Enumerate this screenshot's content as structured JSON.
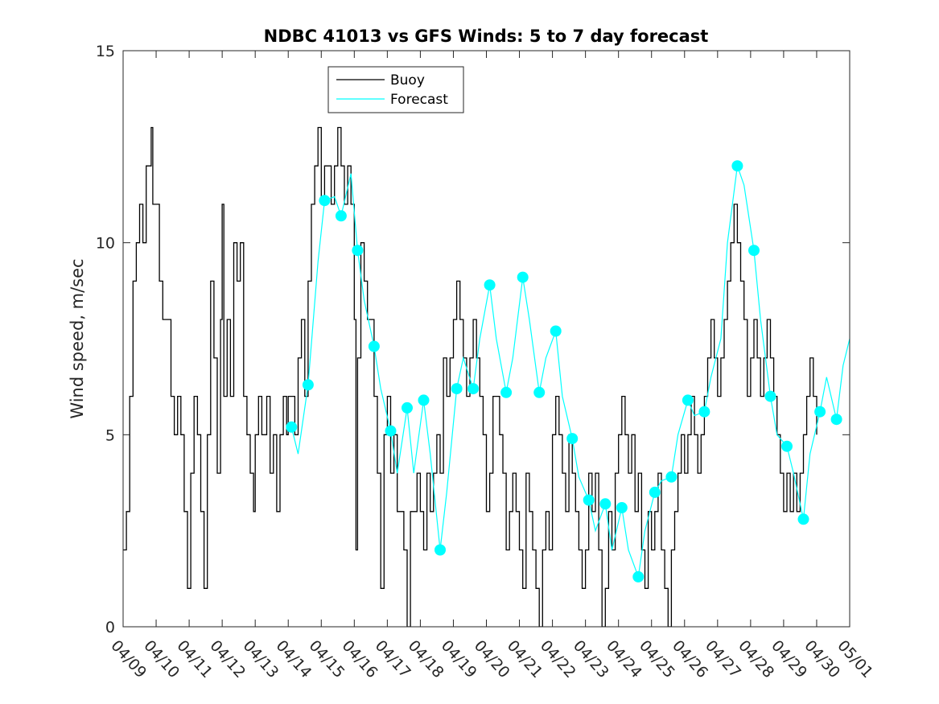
{
  "chart_data": {
    "type": "line",
    "title": "NDBC 41013 vs GFS Winds: 5 to 7 day forecast",
    "xlabel": "",
    "ylabel": "Wind speed, m/sec",
    "ylim": [
      0,
      15
    ],
    "yticks": [
      0,
      5,
      10,
      15
    ],
    "xticks": [
      "04/09",
      "04/10",
      "04/11",
      "04/12",
      "04/13",
      "04/14",
      "04/15",
      "04/16",
      "04/17",
      "04/18",
      "04/19",
      "04/20",
      "04/21",
      "04/22",
      "04/23",
      "04/24",
      "04/25",
      "04/26",
      "04/27",
      "04/28",
      "04/29",
      "04/30",
      "05/01"
    ],
    "x_day_range": [
      9,
      31
    ],
    "legend": {
      "placement": "top-center",
      "entries": [
        "Buoy",
        "Forecast"
      ]
    },
    "colors": {
      "buoy": "#000000",
      "forecast": "#00ffff",
      "axes": "#262626"
    },
    "series": [
      {
        "name": "Buoy",
        "points": [
          [
            9.0,
            2
          ],
          [
            9.1,
            3
          ],
          [
            9.2,
            6
          ],
          [
            9.3,
            9
          ],
          [
            9.4,
            10
          ],
          [
            9.5,
            11
          ],
          [
            9.6,
            10
          ],
          [
            9.7,
            12
          ],
          [
            9.8,
            12
          ],
          [
            9.85,
            13
          ],
          [
            9.9,
            11
          ],
          [
            10.0,
            11
          ],
          [
            10.1,
            9
          ],
          [
            10.2,
            8
          ],
          [
            10.35,
            8
          ],
          [
            10.45,
            6
          ],
          [
            10.55,
            5
          ],
          [
            10.65,
            6
          ],
          [
            10.75,
            5
          ],
          [
            10.85,
            3
          ],
          [
            10.95,
            1
          ],
          [
            11.05,
            4
          ],
          [
            11.15,
            6
          ],
          [
            11.25,
            5
          ],
          [
            11.35,
            3
          ],
          [
            11.45,
            1
          ],
          [
            11.55,
            5
          ],
          [
            11.65,
            9
          ],
          [
            11.75,
            7
          ],
          [
            11.85,
            4
          ],
          [
            11.95,
            8
          ],
          [
            12.0,
            11
          ],
          [
            12.05,
            6
          ],
          [
            12.15,
            8
          ],
          [
            12.25,
            6
          ],
          [
            12.35,
            10
          ],
          [
            12.45,
            9
          ],
          [
            12.55,
            10
          ],
          [
            12.65,
            6
          ],
          [
            12.75,
            5
          ],
          [
            12.85,
            4
          ],
          [
            12.95,
            3
          ],
          [
            13.0,
            5
          ],
          [
            13.1,
            6
          ],
          [
            13.2,
            5
          ],
          [
            13.35,
            6
          ],
          [
            13.45,
            4
          ],
          [
            13.55,
            5
          ],
          [
            13.65,
            3
          ],
          [
            13.75,
            5
          ],
          [
            13.85,
            6
          ],
          [
            13.95,
            5
          ],
          [
            14.0,
            6
          ],
          [
            14.1,
            6
          ],
          [
            14.2,
            5
          ],
          [
            14.3,
            7
          ],
          [
            14.4,
            8
          ],
          [
            14.5,
            6
          ],
          [
            14.6,
            9
          ],
          [
            14.7,
            11
          ],
          [
            14.8,
            12
          ],
          [
            14.9,
            13
          ],
          [
            15.0,
            11
          ],
          [
            15.1,
            12
          ],
          [
            15.2,
            12
          ],
          [
            15.3,
            11
          ],
          [
            15.4,
            12
          ],
          [
            15.5,
            13
          ],
          [
            15.6,
            12
          ],
          [
            15.7,
            11
          ],
          [
            15.8,
            12
          ],
          [
            15.9,
            11
          ],
          [
            16.0,
            8
          ],
          [
            16.05,
            2
          ],
          [
            16.1,
            7
          ],
          [
            16.2,
            10
          ],
          [
            16.3,
            9
          ],
          [
            16.4,
            8
          ],
          [
            16.5,
            8
          ],
          [
            16.6,
            6
          ],
          [
            16.7,
            4
          ],
          [
            16.8,
            1
          ],
          [
            16.9,
            5
          ],
          [
            17.0,
            6
          ],
          [
            17.1,
            4
          ],
          [
            17.2,
            5
          ],
          [
            17.3,
            3
          ],
          [
            17.4,
            3
          ],
          [
            17.5,
            2
          ],
          [
            17.6,
            0
          ],
          [
            17.7,
            3
          ],
          [
            17.8,
            3
          ],
          [
            17.9,
            4
          ],
          [
            18.0,
            3
          ],
          [
            18.1,
            2
          ],
          [
            18.2,
            4
          ],
          [
            18.3,
            3
          ],
          [
            18.4,
            4
          ],
          [
            18.5,
            5
          ],
          [
            18.6,
            4
          ],
          [
            18.7,
            7
          ],
          [
            18.8,
            6
          ],
          [
            18.9,
            7
          ],
          [
            19.0,
            8
          ],
          [
            19.1,
            9
          ],
          [
            19.2,
            8
          ],
          [
            19.3,
            7
          ],
          [
            19.4,
            6
          ],
          [
            19.5,
            7
          ],
          [
            19.6,
            8
          ],
          [
            19.7,
            7
          ],
          [
            19.8,
            6
          ],
          [
            19.9,
            5
          ],
          [
            20.0,
            3
          ],
          [
            20.1,
            4
          ],
          [
            20.2,
            6
          ],
          [
            20.3,
            6
          ],
          [
            20.4,
            5
          ],
          [
            20.5,
            4
          ],
          [
            20.6,
            2
          ],
          [
            20.7,
            3
          ],
          [
            20.8,
            4
          ],
          [
            20.9,
            3
          ],
          [
            21.0,
            2
          ],
          [
            21.1,
            1
          ],
          [
            21.2,
            4
          ],
          [
            21.3,
            3
          ],
          [
            21.4,
            2
          ],
          [
            21.5,
            1
          ],
          [
            21.6,
            0
          ],
          [
            21.7,
            2
          ],
          [
            21.8,
            3
          ],
          [
            21.9,
            2
          ],
          [
            22.0,
            5
          ],
          [
            22.1,
            6
          ],
          [
            22.2,
            5
          ],
          [
            22.3,
            4
          ],
          [
            22.4,
            3
          ],
          [
            22.5,
            5
          ],
          [
            22.6,
            4
          ],
          [
            22.7,
            3
          ],
          [
            22.8,
            2
          ],
          [
            22.9,
            1
          ],
          [
            23.0,
            2
          ],
          [
            23.1,
            4
          ],
          [
            23.2,
            3
          ],
          [
            23.3,
            4
          ],
          [
            23.4,
            2
          ],
          [
            23.5,
            0
          ],
          [
            23.6,
            1
          ],
          [
            23.7,
            3
          ],
          [
            23.8,
            2
          ],
          [
            23.9,
            4
          ],
          [
            24.0,
            5
          ],
          [
            24.1,
            6
          ],
          [
            24.2,
            5
          ],
          [
            24.3,
            4
          ],
          [
            24.4,
            5
          ],
          [
            24.5,
            3
          ],
          [
            24.6,
            4
          ],
          [
            24.7,
            2
          ],
          [
            24.8,
            1
          ],
          [
            24.9,
            3
          ],
          [
            25.0,
            2
          ],
          [
            25.1,
            3
          ],
          [
            25.2,
            4
          ],
          [
            25.3,
            2
          ],
          [
            25.4,
            1
          ],
          [
            25.5,
            0
          ],
          [
            25.6,
            2
          ],
          [
            25.7,
            3
          ],
          [
            25.8,
            4
          ],
          [
            25.9,
            5
          ],
          [
            26.0,
            4
          ],
          [
            26.1,
            5
          ],
          [
            26.2,
            6
          ],
          [
            26.3,
            5
          ],
          [
            26.4,
            4
          ],
          [
            26.5,
            5
          ],
          [
            26.6,
            6
          ],
          [
            26.7,
            7
          ],
          [
            26.8,
            8
          ],
          [
            26.9,
            7
          ],
          [
            27.0,
            6
          ],
          [
            27.1,
            7
          ],
          [
            27.2,
            8
          ],
          [
            27.3,
            9
          ],
          [
            27.4,
            10
          ],
          [
            27.5,
            11
          ],
          [
            27.6,
            10
          ],
          [
            27.7,
            9
          ],
          [
            27.8,
            8
          ],
          [
            27.9,
            6
          ],
          [
            28.0,
            7
          ],
          [
            28.1,
            8
          ],
          [
            28.2,
            7
          ],
          [
            28.3,
            6
          ],
          [
            28.4,
            7
          ],
          [
            28.5,
            8
          ],
          [
            28.6,
            7
          ],
          [
            28.7,
            6
          ],
          [
            28.8,
            5
          ],
          [
            28.9,
            4
          ],
          [
            29.0,
            3
          ],
          [
            29.1,
            4
          ],
          [
            29.2,
            3
          ],
          [
            29.3,
            4
          ],
          [
            29.4,
            3
          ],
          [
            29.5,
            4
          ],
          [
            29.6,
            5
          ],
          [
            29.7,
            6
          ],
          [
            29.8,
            7
          ],
          [
            29.9,
            6
          ],
          [
            30.0,
            5
          ]
        ]
      },
      {
        "name": "Forecast",
        "points": [
          [
            14.1,
            5.2
          ],
          [
            14.3,
            4.5
          ],
          [
            14.6,
            6.3
          ],
          [
            14.9,
            9.5
          ],
          [
            15.1,
            11.1
          ],
          [
            15.4,
            11.2
          ],
          [
            15.6,
            10.7
          ],
          [
            15.9,
            11.8
          ],
          [
            16.1,
            9.8
          ],
          [
            16.3,
            8.5
          ],
          [
            16.6,
            7.3
          ],
          [
            16.8,
            6.2
          ],
          [
            17.1,
            5.1
          ],
          [
            17.3,
            4.0
          ],
          [
            17.6,
            5.7
          ],
          [
            17.8,
            4.0
          ],
          [
            18.1,
            5.9
          ],
          [
            18.3,
            4.5
          ],
          [
            18.6,
            2.0
          ],
          [
            18.8,
            3.5
          ],
          [
            19.1,
            6.2
          ],
          [
            19.3,
            7.0
          ],
          [
            19.6,
            6.2
          ],
          [
            19.8,
            7.5
          ],
          [
            20.1,
            8.9
          ],
          [
            20.3,
            7.5
          ],
          [
            20.6,
            6.1
          ],
          [
            20.8,
            7.0
          ],
          [
            21.1,
            9.1
          ],
          [
            21.3,
            8.0
          ],
          [
            21.6,
            6.1
          ],
          [
            21.8,
            7.0
          ],
          [
            22.1,
            7.7
          ],
          [
            22.3,
            6.0
          ],
          [
            22.6,
            4.9
          ],
          [
            22.8,
            3.9
          ],
          [
            23.1,
            3.3
          ],
          [
            23.3,
            2.5
          ],
          [
            23.6,
            3.2
          ],
          [
            23.8,
            2.0
          ],
          [
            24.1,
            3.1
          ],
          [
            24.3,
            2.0
          ],
          [
            24.6,
            1.3
          ],
          [
            24.8,
            2.5
          ],
          [
            25.1,
            3.5
          ],
          [
            25.3,
            3.8
          ],
          [
            25.6,
            3.9
          ],
          [
            25.8,
            5.0
          ],
          [
            26.1,
            5.9
          ],
          [
            26.3,
            5.5
          ],
          [
            26.6,
            5.6
          ],
          [
            26.8,
            6.5
          ],
          [
            27.1,
            7.5
          ],
          [
            27.3,
            10.0
          ],
          [
            27.6,
            12.0
          ],
          [
            27.8,
            11.5
          ],
          [
            28.1,
            9.8
          ],
          [
            28.3,
            8.0
          ],
          [
            28.6,
            6.0
          ],
          [
            28.8,
            5.0
          ],
          [
            29.1,
            4.7
          ],
          [
            29.3,
            4.0
          ],
          [
            29.6,
            2.8
          ],
          [
            29.8,
            4.5
          ],
          [
            30.1,
            5.6
          ],
          [
            30.3,
            6.5
          ],
          [
            30.6,
            5.4
          ],
          [
            30.8,
            6.8
          ],
          [
            31.0,
            7.5
          ]
        ],
        "markers": [
          [
            14.1,
            5.2
          ],
          [
            14.6,
            6.3
          ],
          [
            15.1,
            11.1
          ],
          [
            15.6,
            10.7
          ],
          [
            16.1,
            9.8
          ],
          [
            16.6,
            7.3
          ],
          [
            17.1,
            5.1
          ],
          [
            17.6,
            5.7
          ],
          [
            18.1,
            5.9
          ],
          [
            18.6,
            2.0
          ],
          [
            19.1,
            6.2
          ],
          [
            19.6,
            6.2
          ],
          [
            20.1,
            8.9
          ],
          [
            20.6,
            6.1
          ],
          [
            21.1,
            9.1
          ],
          [
            21.6,
            6.1
          ],
          [
            22.1,
            7.7
          ],
          [
            22.6,
            4.9
          ],
          [
            23.1,
            3.3
          ],
          [
            23.6,
            3.2
          ],
          [
            24.1,
            3.1
          ],
          [
            24.6,
            1.3
          ],
          [
            25.1,
            3.5
          ],
          [
            25.6,
            3.9
          ],
          [
            26.1,
            5.9
          ],
          [
            26.6,
            5.6
          ],
          [
            27.6,
            12.0
          ],
          [
            28.1,
            9.8
          ],
          [
            28.6,
            6.0
          ],
          [
            29.1,
            4.7
          ],
          [
            29.6,
            2.8
          ],
          [
            30.1,
            5.6
          ],
          [
            30.6,
            5.4
          ]
        ]
      }
    ]
  }
}
